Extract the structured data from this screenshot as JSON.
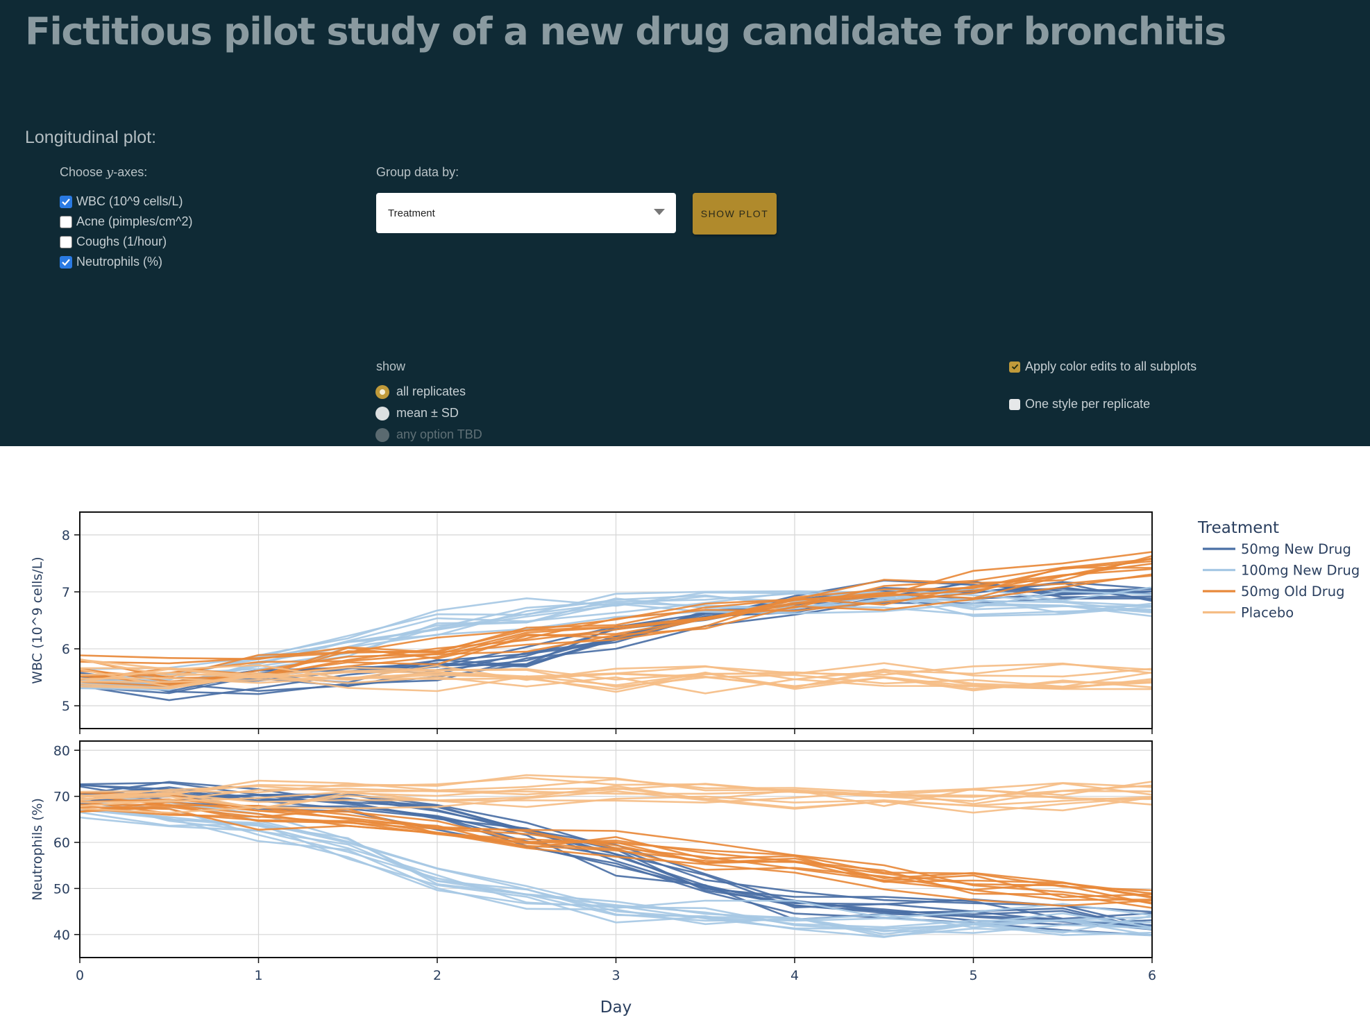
{
  "header": {
    "title": "Fictitious pilot study of a new drug candidate for bronchitis"
  },
  "controls": {
    "section_title": "Longitudinal plot:",
    "yaxes_label_prefix": "Choose ",
    "yaxes_label_var": "y",
    "yaxes_label_suffix": "-axes:",
    "yaxes_options": [
      {
        "label": "WBC (10^9 cells/L)",
        "checked": true
      },
      {
        "label": "Acne (pimples/cm^2)",
        "checked": false
      },
      {
        "label": "Coughs (1/hour)",
        "checked": false
      },
      {
        "label": "Neutrophils (%)",
        "checked": true
      }
    ],
    "group_label": "Group data by:",
    "group_value": "Treatment",
    "show_button": "SHOW PLOT",
    "show_label": "show",
    "show_options": [
      {
        "label": "all replicates",
        "state": "selected"
      },
      {
        "label": "mean ± SD",
        "state": "unselected"
      },
      {
        "label": "any option TBD",
        "state": "disabled"
      }
    ],
    "apply_color_label": "Apply color edits to all subplots",
    "apply_color_checked": true,
    "one_style_label": "One style per replicate",
    "one_style_checked": false,
    "accent_color": "#c09a3a"
  },
  "chart_data": {
    "type": "line",
    "x_label": "Day",
    "x_range": [
      0,
      6
    ],
    "x_ticks": [
      0,
      1,
      2,
      3,
      4,
      5,
      6
    ],
    "x": [
      0,
      0.5,
      1,
      1.5,
      2,
      2.5,
      3,
      3.5,
      4,
      4.5,
      5,
      5.5,
      6
    ],
    "legend_title": "Treatment",
    "legend_position": "right",
    "grid": true,
    "series": [
      {
        "name": "50mg New Drug",
        "color": "#4a6fa5"
      },
      {
        "name": "100mg New Drug",
        "color": "#a6c8e4"
      },
      {
        "name": "50mg Old Drug",
        "color": "#e8893a"
      },
      {
        "name": "Placebo",
        "color": "#f5bd85"
      }
    ],
    "subplots": [
      {
        "ylabel": "WBC (10^9 cells/L)",
        "y_range": [
          4.6,
          8.4
        ],
        "y_ticks": [
          5,
          6,
          7,
          8
        ],
        "group_means": {
          "50mg New Drug": [
            5.4,
            5.3,
            5.4,
            5.5,
            5.6,
            5.8,
            6.2,
            6.5,
            6.7,
            6.9,
            7.0,
            7.0,
            6.9
          ],
          "100mg New Drug": [
            5.4,
            5.5,
            5.8,
            6.1,
            6.4,
            6.6,
            6.8,
            6.9,
            6.9,
            6.9,
            6.8,
            6.8,
            6.8
          ],
          "50mg Old Drug": [
            5.7,
            5.6,
            5.7,
            5.9,
            6.0,
            6.2,
            6.4,
            6.6,
            6.8,
            7.0,
            7.1,
            7.3,
            7.5
          ],
          "Placebo": [
            5.6,
            5.5,
            5.5,
            5.5,
            5.5,
            5.5,
            5.5,
            5.5,
            5.5,
            5.5,
            5.5,
            5.5,
            5.5
          ]
        },
        "replicates_per_group": 10
      },
      {
        "ylabel": "Neutrophils (%)",
        "y_range": [
          35,
          82
        ],
        "y_ticks": [
          40,
          50,
          60,
          70,
          80
        ],
        "group_means": {
          "50mg New Drug": [
            70,
            70,
            69,
            67,
            65,
            61,
            56,
            50,
            46,
            45,
            44,
            43,
            42
          ],
          "100mg New Drug": [
            69,
            67,
            64,
            60,
            53,
            49,
            46,
            45,
            44,
            43,
            43,
            43,
            43
          ],
          "50mg Old Drug": [
            68,
            67,
            66,
            65,
            63,
            60,
            59,
            57,
            55,
            53,
            51,
            49,
            47
          ],
          "Placebo": [
            69,
            70,
            70,
            71,
            71,
            71,
            71,
            70,
            70,
            70,
            70,
            70,
            70
          ]
        },
        "replicates_per_group": 10
      }
    ]
  }
}
